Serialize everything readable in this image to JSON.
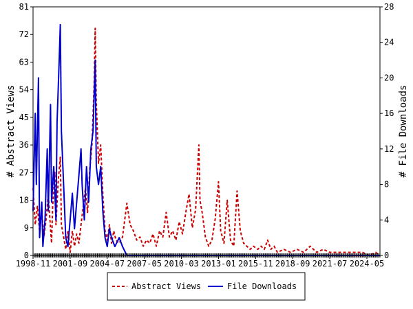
{
  "chart_data": {
    "type": "line",
    "xlabel": "",
    "ylabel_left": "# Abstract Views",
    "ylabel_right": "# File Downloads",
    "x_tick_labels": [
      "1998-11",
      "2001-09",
      "2004-07",
      "2007-05",
      "2010-03",
      "2013-01",
      "2015-11",
      "2018-09",
      "2021-07",
      "2024-05"
    ],
    "x_start": "1998-11",
    "x_end": "2025-05",
    "ylim_left": [
      0,
      81
    ],
    "ylim_right": [
      0,
      28
    ],
    "yticks_left": [
      0,
      9,
      18,
      27,
      36,
      45,
      54,
      63,
      72,
      81
    ],
    "yticks_right": [
      0,
      4,
      8,
      12,
      16,
      20,
      24,
      28
    ],
    "grid": false,
    "legend_position": "bottom-center",
    "series": [
      {
        "name": "Abstract Views",
        "axis": "left",
        "color": "#cc0000",
        "style": "dashed",
        "points": [
          [
            "1998-11",
            22
          ],
          [
            "1999-01",
            10
          ],
          [
            "1999-03",
            16
          ],
          [
            "1999-05",
            8
          ],
          [
            "1999-07",
            14
          ],
          [
            "1999-09",
            6
          ],
          [
            "1999-11",
            12
          ],
          [
            "2000-01",
            20
          ],
          [
            "2000-02",
            14
          ],
          [
            "2000-04",
            4
          ],
          [
            "2000-05",
            16
          ],
          [
            "2000-07",
            27
          ],
          [
            "2000-08",
            10
          ],
          [
            "2000-10",
            24
          ],
          [
            "2000-12",
            32
          ],
          [
            "2001-01",
            10
          ],
          [
            "2001-03",
            6
          ],
          [
            "2001-05",
            2
          ],
          [
            "2001-07",
            8
          ],
          [
            "2001-09",
            1
          ],
          [
            "2001-11",
            8
          ],
          [
            "2002-01",
            3
          ],
          [
            "2002-03",
            7
          ],
          [
            "2002-05",
            4
          ],
          [
            "2002-07",
            10
          ],
          [
            "2002-09",
            16
          ],
          [
            "2002-11",
            22
          ],
          [
            "2003-01",
            14
          ],
          [
            "2003-03",
            28
          ],
          [
            "2003-05",
            36
          ],
          [
            "2003-07",
            56
          ],
          [
            "2003-08",
            74
          ],
          [
            "2003-09",
            50
          ],
          [
            "2003-11",
            30
          ],
          [
            "2004-01",
            36
          ],
          [
            "2004-03",
            20
          ],
          [
            "2004-05",
            8
          ],
          [
            "2004-07",
            5
          ],
          [
            "2004-09",
            10
          ],
          [
            "2004-11",
            4
          ],
          [
            "2005-01",
            8
          ],
          [
            "2005-03",
            5
          ],
          [
            "2005-06",
            4
          ],
          [
            "2005-09",
            6
          ],
          [
            "2006-01",
            17
          ],
          [
            "2006-04",
            10
          ],
          [
            "2006-07",
            8
          ],
          [
            "2006-10",
            5
          ],
          [
            "2007-01",
            6
          ],
          [
            "2007-04",
            3
          ],
          [
            "2007-07",
            5
          ],
          [
            "2007-10",
            4
          ],
          [
            "2008-01",
            7
          ],
          [
            "2008-04",
            3
          ],
          [
            "2008-07",
            8
          ],
          [
            "2008-10",
            6
          ],
          [
            "2009-01",
            14
          ],
          [
            "2009-04",
            6
          ],
          [
            "2009-07",
            8
          ],
          [
            "2009-10",
            5
          ],
          [
            "2010-01",
            11
          ],
          [
            "2010-04",
            7
          ],
          [
            "2010-07",
            14
          ],
          [
            "2010-10",
            20
          ],
          [
            "2011-01",
            9
          ],
          [
            "2011-04",
            15
          ],
          [
            "2011-07",
            36
          ],
          [
            "2011-08",
            18
          ],
          [
            "2011-10",
            14
          ],
          [
            "2012-01",
            6
          ],
          [
            "2012-04",
            3
          ],
          [
            "2012-07",
            5
          ],
          [
            "2012-10",
            12
          ],
          [
            "2013-01",
            24
          ],
          [
            "2013-03",
            8
          ],
          [
            "2013-06",
            4
          ],
          [
            "2013-09",
            18
          ],
          [
            "2013-12",
            5
          ],
          [
            "2014-03",
            3
          ],
          [
            "2014-06",
            21
          ],
          [
            "2014-09",
            8
          ],
          [
            "2014-12",
            4
          ],
          [
            "2015-03",
            3
          ],
          [
            "2015-06",
            2
          ],
          [
            "2015-09",
            3
          ],
          [
            "2016-01",
            2
          ],
          [
            "2016-04",
            3
          ],
          [
            "2016-07",
            2
          ],
          [
            "2016-10",
            5
          ],
          [
            "2017-01",
            2
          ],
          [
            "2017-04",
            3
          ],
          [
            "2017-07",
            1
          ],
          [
            "2018-01",
            2
          ],
          [
            "2018-07",
            1
          ],
          [
            "2019-01",
            2
          ],
          [
            "2019-07",
            1
          ],
          [
            "2020-01",
            3
          ],
          [
            "2020-07",
            1
          ],
          [
            "2021-01",
            2
          ],
          [
            "2021-07",
            1
          ],
          [
            "2022-01",
            1
          ],
          [
            "2022-07",
            1
          ],
          [
            "2023-01",
            1
          ],
          [
            "2023-07",
            1
          ],
          [
            "2024-01",
            1
          ],
          [
            "2024-07",
            0
          ],
          [
            "2025-01",
            1
          ],
          [
            "2025-05",
            0
          ]
        ]
      },
      {
        "name": "File Downloads",
        "axis": "right",
        "color": "#0000cc",
        "style": "solid",
        "points": [
          [
            "1998-11",
            5
          ],
          [
            "1999-01",
            16
          ],
          [
            "1999-02",
            8
          ],
          [
            "1999-04",
            20
          ],
          [
            "1999-05",
            2
          ],
          [
            "1999-07",
            6
          ],
          [
            "1999-08",
            1
          ],
          [
            "1999-10",
            4
          ],
          [
            "1999-12",
            12
          ],
          [
            "2000-01",
            5
          ],
          [
            "2000-03",
            17
          ],
          [
            "2000-04",
            6
          ],
          [
            "2000-06",
            10
          ],
          [
            "2000-08",
            4
          ],
          [
            "2000-09",
            15
          ],
          [
            "2000-11",
            22
          ],
          [
            "2000-12",
            26
          ],
          [
            "2001-01",
            14
          ],
          [
            "2001-03",
            8
          ],
          [
            "2001-05",
            2
          ],
          [
            "2001-07",
            1
          ],
          [
            "2001-09",
            4
          ],
          [
            "2001-11",
            7
          ],
          [
            "2002-01",
            3
          ],
          [
            "2002-03",
            6
          ],
          [
            "2002-05",
            9
          ],
          [
            "2002-07",
            12
          ],
          [
            "2002-08",
            8
          ],
          [
            "2002-10",
            4
          ],
          [
            "2002-12",
            10
          ],
          [
            "2003-02",
            6
          ],
          [
            "2003-04",
            12
          ],
          [
            "2003-06",
            14
          ],
          [
            "2003-08",
            22
          ],
          [
            "2003-09",
            10
          ],
          [
            "2003-11",
            8
          ],
          [
            "2004-01",
            10
          ],
          [
            "2004-03",
            5
          ],
          [
            "2004-05",
            2
          ],
          [
            "2004-07",
            1
          ],
          [
            "2004-09",
            3
          ],
          [
            "2004-11",
            2
          ],
          [
            "2005-02",
            1
          ],
          [
            "2005-06",
            2
          ],
          [
            "2005-09",
            1
          ],
          [
            "2006-01",
            0
          ],
          [
            "2008-01",
            0
          ],
          [
            "2010-01",
            0
          ],
          [
            "2012-01",
            0
          ],
          [
            "2014-01",
            0
          ],
          [
            "2016-01",
            0
          ],
          [
            "2018-01",
            0
          ],
          [
            "2020-01",
            0
          ],
          [
            "2022-01",
            0
          ],
          [
            "2025-05",
            0
          ]
        ]
      }
    ]
  }
}
